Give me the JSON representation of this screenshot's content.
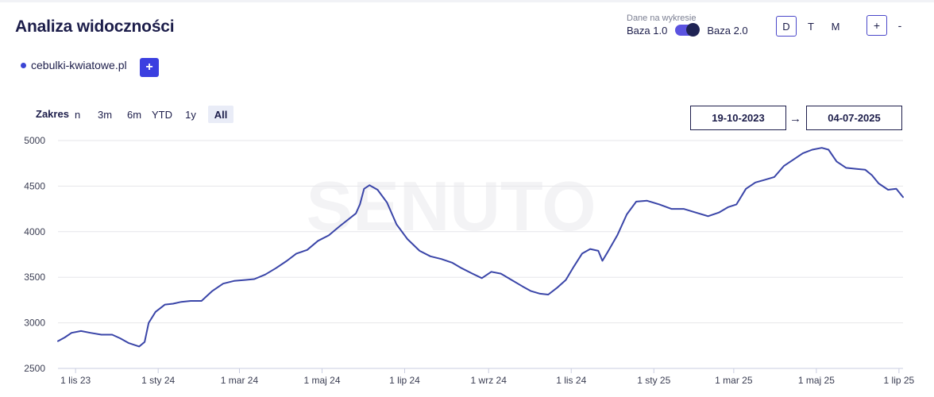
{
  "header": {
    "title": "Analiza widoczności",
    "data_label": "Dane na wykresie",
    "base_left": "Baza 1.0",
    "base_right": "Baza 2.0",
    "periods": [
      "D",
      "T",
      "M"
    ],
    "active_period": "D",
    "zoom_in": "+",
    "zoom_out": "-"
  },
  "domains": {
    "items": [
      {
        "label": "cebulki-kwiatowe.pl",
        "color": "#3b45d4"
      }
    ],
    "add_label": "+"
  },
  "range": {
    "label": "Zakres",
    "partial_label": "n",
    "buttons": [
      "3m",
      "6m",
      "YTD",
      "1y",
      "All"
    ],
    "active": "All",
    "date_from": "19-10-2023",
    "date_to": "04-07-2025",
    "arrow": "→"
  },
  "watermark": "SENUTO",
  "chart_data": {
    "type": "line",
    "ylim": [
      2500,
      5000
    ],
    "yticks": [
      2500,
      3000,
      3500,
      4000,
      4500,
      5000
    ],
    "xlim": [
      "2023-10-19",
      "2025-07-04"
    ],
    "xticks": [
      {
        "label": "1 lis 23",
        "date": "2023-11-01"
      },
      {
        "label": "1 sty 24",
        "date": "2024-01-01"
      },
      {
        "label": "1 mar 24",
        "date": "2024-03-01"
      },
      {
        "label": "1 maj 24",
        "date": "2024-05-01"
      },
      {
        "label": "1 lip 24",
        "date": "2024-07-01"
      },
      {
        "label": "1 wrz 24",
        "date": "2024-09-01"
      },
      {
        "label": "1 lis 24",
        "date": "2024-11-01"
      },
      {
        "label": "1 sty 25",
        "date": "2025-01-01"
      },
      {
        "label": "1 mar 25",
        "date": "2025-03-01"
      },
      {
        "label": "1 maj 25",
        "date": "2025-05-01"
      },
      {
        "label": "1 lip 25",
        "date": "2025-07-01"
      }
    ],
    "series": [
      {
        "color": "#3a45a8",
        "points": [
          [
            "2023-10-19",
            2800
          ],
          [
            "2023-10-24",
            2840
          ],
          [
            "2023-10-29",
            2890
          ],
          [
            "2023-11-05",
            2910
          ],
          [
            "2023-11-12",
            2890
          ],
          [
            "2023-11-20",
            2870
          ],
          [
            "2023-11-28",
            2870
          ],
          [
            "2023-12-04",
            2830
          ],
          [
            "2023-12-10",
            2780
          ],
          [
            "2023-12-18",
            2740
          ],
          [
            "2023-12-22",
            2790
          ],
          [
            "2023-12-25",
            3000
          ],
          [
            "2023-12-30",
            3120
          ],
          [
            "2024-01-06",
            3200
          ],
          [
            "2024-01-12",
            3210
          ],
          [
            "2024-01-18",
            3230
          ],
          [
            "2024-01-25",
            3240
          ],
          [
            "2024-02-02",
            3240
          ],
          [
            "2024-02-10",
            3350
          ],
          [
            "2024-02-18",
            3430
          ],
          [
            "2024-02-26",
            3460
          ],
          [
            "2024-03-05",
            3470
          ],
          [
            "2024-03-12",
            3480
          ],
          [
            "2024-03-20",
            3530
          ],
          [
            "2024-03-28",
            3600
          ],
          [
            "2024-04-05",
            3680
          ],
          [
            "2024-04-12",
            3760
          ],
          [
            "2024-04-20",
            3800
          ],
          [
            "2024-04-28",
            3900
          ],
          [
            "2024-05-06",
            3960
          ],
          [
            "2024-05-14",
            4060
          ],
          [
            "2024-05-20",
            4130
          ],
          [
            "2024-05-26",
            4200
          ],
          [
            "2024-05-29",
            4300
          ],
          [
            "2024-06-01",
            4470
          ],
          [
            "2024-06-05",
            4510
          ],
          [
            "2024-06-11",
            4460
          ],
          [
            "2024-06-18",
            4320
          ],
          [
            "2024-06-25",
            4080
          ],
          [
            "2024-07-03",
            3920
          ],
          [
            "2024-07-12",
            3790
          ],
          [
            "2024-07-20",
            3730
          ],
          [
            "2024-07-28",
            3700
          ],
          [
            "2024-08-05",
            3660
          ],
          [
            "2024-08-12",
            3600
          ],
          [
            "2024-08-20",
            3540
          ],
          [
            "2024-08-27",
            3490
          ],
          [
            "2024-09-03",
            3560
          ],
          [
            "2024-09-10",
            3540
          ],
          [
            "2024-09-18",
            3470
          ],
          [
            "2024-09-26",
            3400
          ],
          [
            "2024-10-02",
            3350
          ],
          [
            "2024-10-09",
            3320
          ],
          [
            "2024-10-15",
            3310
          ],
          [
            "2024-10-22",
            3390
          ],
          [
            "2024-10-28",
            3470
          ],
          [
            "2024-11-03",
            3620
          ],
          [
            "2024-11-09",
            3760
          ],
          [
            "2024-11-15",
            3810
          ],
          [
            "2024-11-21",
            3790
          ],
          [
            "2024-11-24",
            3680
          ],
          [
            "2024-11-28",
            3780
          ],
          [
            "2024-12-05",
            3960
          ],
          [
            "2024-12-12",
            4190
          ],
          [
            "2024-12-19",
            4330
          ],
          [
            "2024-12-27",
            4340
          ],
          [
            "2025-01-05",
            4300
          ],
          [
            "2025-01-14",
            4250
          ],
          [
            "2025-01-23",
            4250
          ],
          [
            "2025-02-01",
            4210
          ],
          [
            "2025-02-10",
            4170
          ],
          [
            "2025-02-18",
            4210
          ],
          [
            "2025-02-25",
            4270
          ],
          [
            "2025-03-03",
            4300
          ],
          [
            "2025-03-10",
            4470
          ],
          [
            "2025-03-17",
            4540
          ],
          [
            "2025-03-24",
            4570
          ],
          [
            "2025-03-31",
            4600
          ],
          [
            "2025-04-07",
            4720
          ],
          [
            "2025-04-14",
            4790
          ],
          [
            "2025-04-21",
            4860
          ],
          [
            "2025-04-28",
            4900
          ],
          [
            "2025-05-05",
            4920
          ],
          [
            "2025-05-10",
            4900
          ],
          [
            "2025-05-16",
            4770
          ],
          [
            "2025-05-23",
            4700
          ],
          [
            "2025-05-30",
            4690
          ],
          [
            "2025-06-06",
            4680
          ],
          [
            "2025-06-11",
            4620
          ],
          [
            "2025-06-16",
            4530
          ],
          [
            "2025-06-23",
            4460
          ],
          [
            "2025-06-29",
            4470
          ],
          [
            "2025-07-04",
            4380
          ]
        ]
      }
    ]
  }
}
